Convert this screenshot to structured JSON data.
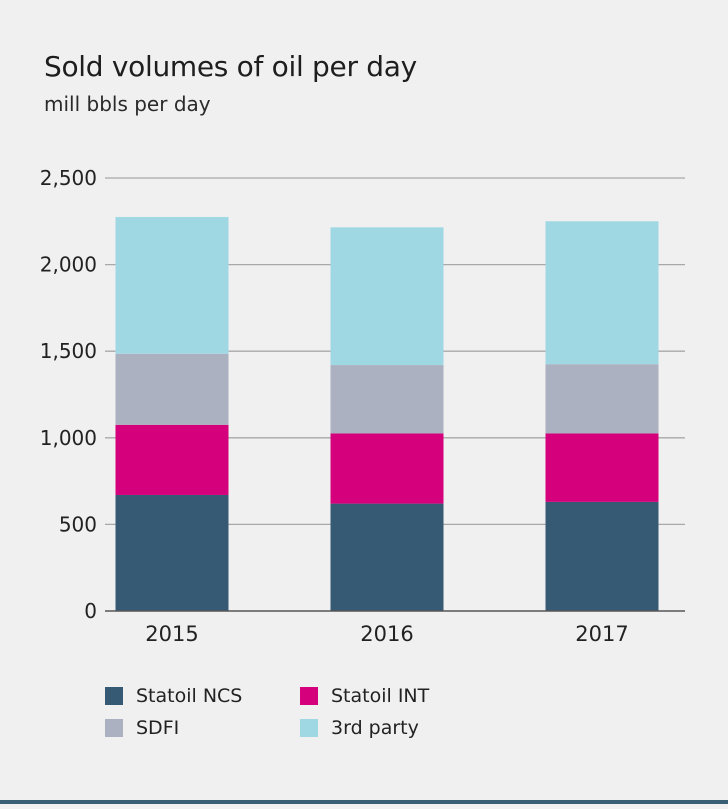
{
  "chart_data": {
    "type": "bar",
    "stacked": true,
    "title": "Sold volumes of oil per day",
    "subtitle": "mill bbls per day",
    "xlabel": "",
    "ylabel": "",
    "categories": [
      "2015",
      "2016",
      "2017"
    ],
    "ylim": [
      0,
      2500
    ],
    "yticks": [
      0,
      500,
      1000,
      1500,
      2000,
      2500
    ],
    "ytick_labels": [
      "0",
      "500",
      "1,000",
      "1,500",
      "2,000",
      "2,500"
    ],
    "grid": true,
    "legend_position": "bottom-left",
    "series": [
      {
        "name": "Statoil NCS",
        "color": "#365a73",
        "values": [
          670,
          620,
          630
        ]
      },
      {
        "name": "Statoil INT",
        "color": "#d4007c",
        "values": [
          405,
          405,
          395
        ]
      },
      {
        "name": "SDFI",
        "color": "#abb1c0",
        "values": [
          410,
          395,
          400
        ]
      },
      {
        "name": "3rd party",
        "color": "#9fd7e3",
        "values": [
          790,
          795,
          825
        ]
      }
    ]
  },
  "legend": {
    "items": [
      {
        "label": "Statoil NCS",
        "color": "#365a73"
      },
      {
        "label": "Statoil INT",
        "color": "#d4007c"
      },
      {
        "label": "SDFI",
        "color": "#abb1c0"
      },
      {
        "label": "3rd party",
        "color": "#9fd7e3"
      }
    ]
  },
  "theme": {
    "background": "#f0f0f0",
    "gridline_color": "#a8a8a8",
    "axis_color": "#555555",
    "bottom_rule_color": "#3a5f74"
  }
}
